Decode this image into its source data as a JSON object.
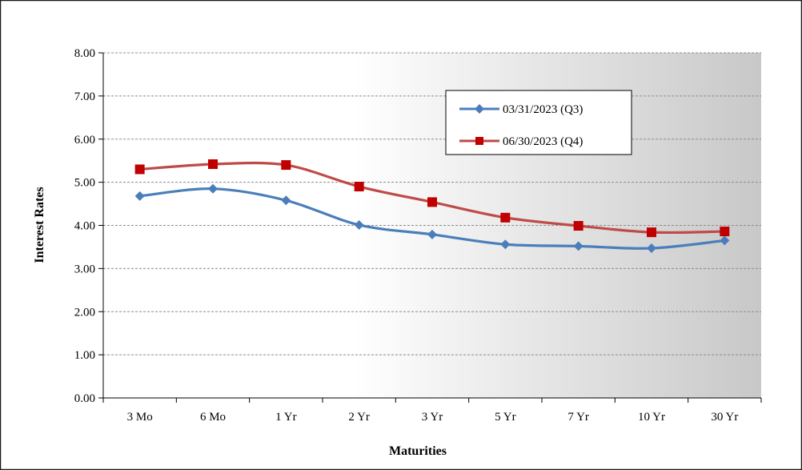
{
  "chart_data": {
    "type": "line",
    "xlabel": "Maturities",
    "ylabel": "Interest Rates",
    "categories": [
      "3 Mo",
      "6 Mo",
      "1 Yr",
      "2 Yr",
      "3 Yr",
      "5 Yr",
      "7 Yr",
      "10 Yr",
      "30 Yr"
    ],
    "ylim": [
      0,
      8
    ],
    "yticks": [
      "0.00",
      "1.00",
      "2.00",
      "3.00",
      "4.00",
      "5.00",
      "6.00",
      "7.00",
      "8.00"
    ],
    "grid": true,
    "legend_position": "top-right",
    "series": [
      {
        "name": "03/31/2023 (Q3)",
        "color": "#4a7ebb",
        "marker": "diamond",
        "values": [
          4.68,
          4.85,
          4.58,
          4.01,
          3.79,
          3.56,
          3.52,
          3.47,
          3.65
        ]
      },
      {
        "name": "06/30/2023 (Q4)",
        "color": "#be4b48",
        "marker": "square",
        "values": [
          5.3,
          5.42,
          5.4,
          4.9,
          4.54,
          4.18,
          3.99,
          3.84,
          3.86
        ]
      }
    ]
  }
}
